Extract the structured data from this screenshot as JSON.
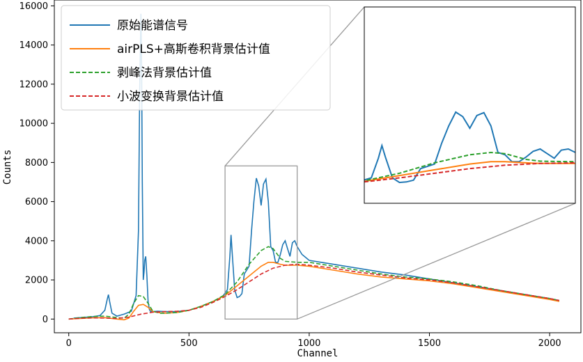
{
  "chart_data": {
    "type": "line",
    "xlabel": "Channel",
    "ylabel": "Counts",
    "xlim": [
      -60,
      2130
    ],
    "ylim": [
      -700,
      16300
    ],
    "xticks": [
      0,
      500,
      1000,
      1500,
      2000
    ],
    "yticks": [
      0,
      2000,
      4000,
      6000,
      8000,
      10000,
      12000,
      14000,
      16000
    ],
    "legend_position": "top-left",
    "inset": {
      "xlim": [
        650,
        950
      ],
      "ylim": [
        -700,
        16300
      ],
      "position": "top-right",
      "zoom_region_box": true
    },
    "series": [
      {
        "name": "原始能谱信号",
        "color": "#1f77b4",
        "style": "solid",
        "x": [
          20,
          60,
          100,
          130,
          150,
          160,
          165,
          170,
          180,
          200,
          230,
          260,
          280,
          290,
          295,
          300,
          303,
          306,
          310,
          313,
          316,
          320,
          325,
          330,
          335,
          340,
          350,
          370,
          400,
          450,
          500,
          550,
          600,
          640,
          660,
          670,
          675,
          680,
          690,
          700,
          710,
          720,
          730,
          740,
          750,
          760,
          770,
          780,
          790,
          800,
          810,
          820,
          830,
          840,
          850,
          860,
          870,
          880,
          890,
          900,
          910,
          920,
          930,
          940,
          950,
          970,
          1000,
          1050,
          1100,
          1200,
          1300,
          1400,
          1500,
          1600,
          1700,
          1800,
          1900,
          2000,
          2040
        ],
        "y": [
          50,
          80,
          120,
          180,
          450,
          1000,
          1250,
          900,
          300,
          150,
          250,
          400,
          1200,
          4500,
          11500,
          15600,
          13000,
          7000,
          2000,
          2400,
          3000,
          3200,
          2200,
          900,
          500,
          380,
          380,
          400,
          380,
          380,
          450,
          650,
          900,
          1150,
          1500,
          3200,
          4300,
          3300,
          1500,
          1100,
          1150,
          1300,
          2300,
          2500,
          2700,
          4500,
          6000,
          7200,
          6800,
          5800,
          6900,
          7150,
          6000,
          3700,
          3500,
          2900,
          2900,
          3300,
          3800,
          4000,
          3600,
          3200,
          3900,
          4000,
          3700,
          3300,
          3000,
          2900,
          2800,
          2600,
          2400,
          2250,
          2050,
          1850,
          1650,
          1450,
          1250,
          1050,
          950
        ]
      },
      {
        "name": "airPLS+高斯卷积背景估计值",
        "color": "#ff7f0e",
        "style": "solid",
        "x": [
          0,
          50,
          100,
          150,
          200,
          230,
          250,
          270,
          290,
          310,
          330,
          350,
          380,
          400,
          450,
          500,
          550,
          600,
          650,
          700,
          750,
          800,
          830,
          850,
          880,
          900,
          950,
          1000,
          1100,
          1200,
          1300,
          1400,
          1500,
          1600,
          1700,
          1800,
          1900,
          2000,
          2040
        ],
        "y": [
          0,
          30,
          60,
          70,
          0,
          -40,
          50,
          400,
          700,
          750,
          600,
          380,
          320,
          300,
          330,
          450,
          650,
          900,
          1200,
          1700,
          2200,
          2700,
          2900,
          2900,
          2800,
          2750,
          2750,
          2700,
          2500,
          2300,
          2150,
          2050,
          1950,
          1800,
          1600,
          1400,
          1200,
          1000,
          900
        ]
      },
      {
        "name": "剥峰法背景估计值",
        "color": "#2ca02c",
        "style": "dashed",
        "x": [
          0,
          50,
          100,
          150,
          200,
          230,
          250,
          270,
          290,
          310,
          330,
          350,
          380,
          400,
          450,
          500,
          550,
          600,
          650,
          700,
          750,
          800,
          830,
          850,
          880,
          900,
          950,
          1000,
          1100,
          1200,
          1300,
          1400,
          1500,
          1600,
          1700,
          1800,
          1900,
          2000,
          2040
        ],
        "y": [
          0,
          80,
          130,
          150,
          80,
          40,
          250,
          800,
          1200,
          1150,
          800,
          400,
          300,
          300,
          330,
          450,
          650,
          900,
          1250,
          1900,
          2800,
          3500,
          3700,
          3600,
          3100,
          2950,
          2900,
          2900,
          2700,
          2500,
          2300,
          2150,
          2050,
          1900,
          1700,
          1450,
          1250,
          1050,
          950
        ]
      },
      {
        "name": "小波变换背景估计值",
        "color": "#d62728",
        "style": "dashed",
        "x": [
          0,
          50,
          100,
          150,
          200,
          250,
          300,
          350,
          400,
          450,
          500,
          550,
          600,
          650,
          700,
          750,
          800,
          850,
          900,
          950,
          1000,
          1100,
          1200,
          1300,
          1400,
          1500,
          1600,
          1700,
          1800,
          1900,
          2000,
          2040
        ],
        "y": [
          0,
          40,
          60,
          50,
          30,
          100,
          250,
          350,
          380,
          400,
          450,
          600,
          850,
          1150,
          1500,
          1900,
          2300,
          2600,
          2750,
          2800,
          2750,
          2600,
          2400,
          2250,
          2100,
          2000,
          1850,
          1650,
          1450,
          1250,
          1050,
          950
        ]
      }
    ]
  }
}
